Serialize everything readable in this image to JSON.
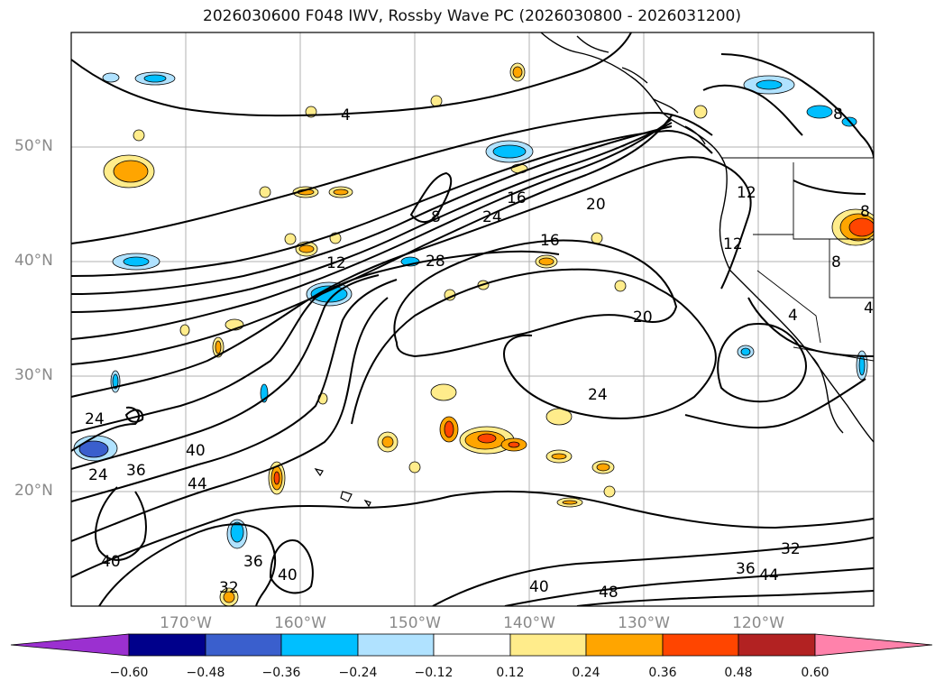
{
  "title": "2026030600 F048 IWV, Rossby Wave PC (2026030800 - 2026031200)",
  "axes": {
    "lat_labels": [
      "50°N",
      "40°N",
      "30°N",
      "20°N"
    ],
    "lon_labels": [
      "170°W",
      "160°W",
      "150°W",
      "140°W",
      "130°W",
      "120°W"
    ]
  },
  "colorbar": {
    "ticks": [
      "−0.60",
      "−0.48",
      "−0.36",
      "−0.24",
      "−0.12",
      "0.12",
      "0.24",
      "0.36",
      "0.48",
      "0.60"
    ],
    "colors": [
      "#9b30d0",
      "#00008b",
      "#3a5fcd",
      "#00bfff",
      "#b0e2ff",
      "#ffffff",
      "#ffec8b",
      "#ffa500",
      "#ff4500",
      "#b22222",
      "#ff82ab"
    ]
  },
  "contour_labels": [
    {
      "text": "4"
    },
    {
      "text": "8"
    },
    {
      "text": "8"
    },
    {
      "text": "12"
    },
    {
      "text": "12"
    },
    {
      "text": "12"
    },
    {
      "text": "16"
    },
    {
      "text": "16"
    },
    {
      "text": "20"
    },
    {
      "text": "20"
    },
    {
      "text": "24"
    },
    {
      "text": "24"
    },
    {
      "text": "24"
    },
    {
      "text": "28"
    },
    {
      "text": "36"
    },
    {
      "text": "40"
    },
    {
      "text": "44"
    },
    {
      "text": "36"
    },
    {
      "text": "40"
    },
    {
      "text": "32"
    },
    {
      "text": "32"
    },
    {
      "text": "36"
    },
    {
      "text": "44"
    },
    {
      "text": "40"
    },
    {
      "text": "48"
    },
    {
      "text": "8"
    },
    {
      "text": "4"
    },
    {
      "text": "4"
    },
    {
      "text": "8"
    },
    {
      "text": "40"
    },
    {
      "text": "24"
    }
  ]
}
